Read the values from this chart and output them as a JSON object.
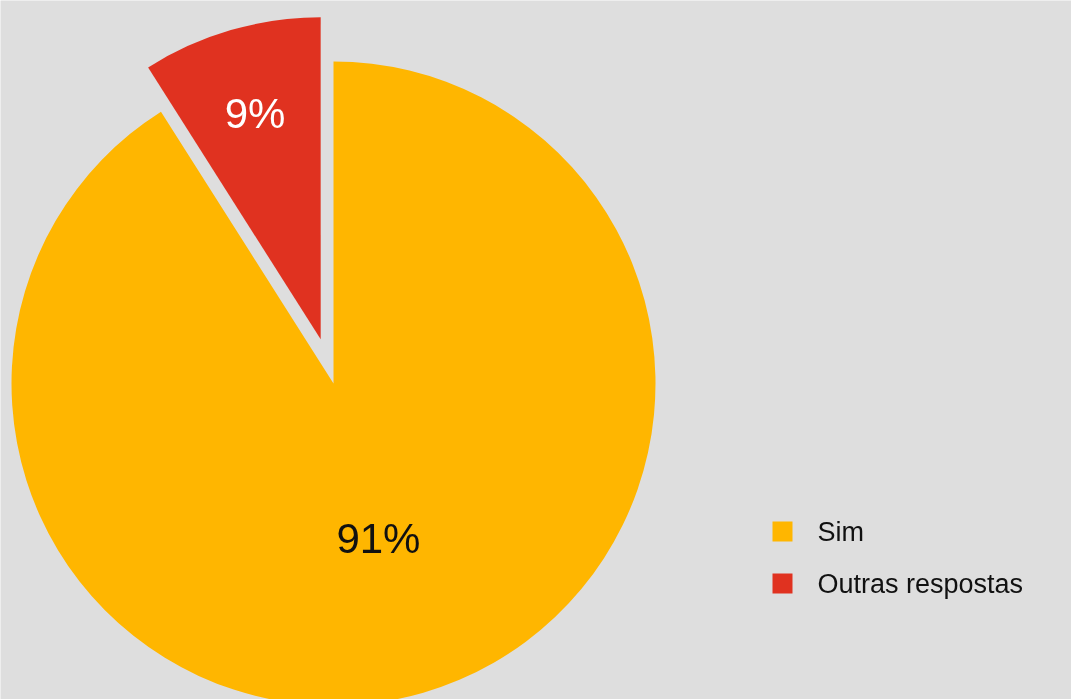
{
  "chart_data": {
    "type": "pie",
    "categories": [
      "Sim",
      "Outras respostas"
    ],
    "values": [
      91,
      9
    ],
    "colors": [
      "#ffb600",
      "#e03220"
    ],
    "value_labels": [
      "91%",
      "9%"
    ],
    "legend": "bottom right"
  }
}
